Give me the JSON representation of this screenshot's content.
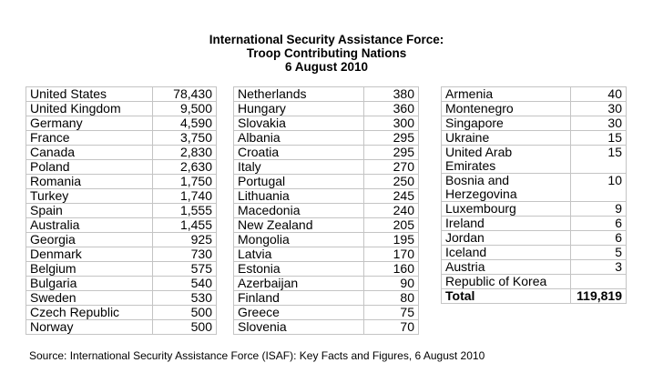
{
  "title": [
    "International Security Assistance Force:",
    "Troop Contributing Nations",
    "6 August 2010"
  ],
  "tables": [
    [
      [
        "United States",
        "78,430"
      ],
      [
        "United Kingdom",
        "9,500"
      ],
      [
        "Germany",
        "4,590"
      ],
      [
        "France",
        "3,750"
      ],
      [
        "Canada",
        "2,830"
      ],
      [
        "Poland",
        "2,630"
      ],
      [
        "Romania",
        "1,750"
      ],
      [
        "Turkey",
        "1,740"
      ],
      [
        "Spain",
        "1,555"
      ],
      [
        "Australia",
        "1,455"
      ],
      [
        "Georgia",
        "925"
      ],
      [
        "Denmark",
        "730"
      ],
      [
        "Belgium",
        "575"
      ],
      [
        "Bulgaria",
        "540"
      ],
      [
        "Sweden",
        "530"
      ],
      [
        "Czech Republic",
        "500"
      ],
      [
        "Norway",
        "500"
      ]
    ],
    [
      [
        "Netherlands",
        "380"
      ],
      [
        "Hungary",
        "360"
      ],
      [
        "Slovakia",
        "300"
      ],
      [
        "Albania",
        "295"
      ],
      [
        "Croatia",
        "295"
      ],
      [
        "Italy",
        "270"
      ],
      [
        "Portugal",
        "250"
      ],
      [
        "Lithuania",
        "245"
      ],
      [
        "Macedonia",
        "240"
      ],
      [
        "New Zealand",
        "205"
      ],
      [
        "Mongolia",
        "195"
      ],
      [
        "Latvia",
        "170"
      ],
      [
        "Estonia",
        "160"
      ],
      [
        "Azerbaijan",
        "90"
      ],
      [
        "Finland",
        "80"
      ],
      [
        "Greece",
        "75"
      ],
      [
        "Slovenia",
        "70"
      ]
    ],
    [
      [
        "Armenia",
        "40"
      ],
      [
        "Montenegro",
        "30"
      ],
      [
        "Singapore",
        "30"
      ],
      [
        "Ukraine",
        "15"
      ],
      [
        "United Arab\nEmirates",
        "15"
      ],
      [
        "Bosnia and\nHerzegovina",
        "10"
      ],
      [
        "Luxembourg",
        "9"
      ],
      [
        "Ireland",
        "6"
      ],
      [
        "Jordan",
        "6"
      ],
      [
        "Iceland",
        "5"
      ],
      [
        "Austria",
        "3"
      ],
      [
        "Republic of Korea",
        ""
      ]
    ]
  ],
  "total": {
    "label": "Total",
    "value": "119,819"
  },
  "source": "Source: International Security Assistance Force (ISAF): Key Facts and Figures, 6 August 2010"
}
